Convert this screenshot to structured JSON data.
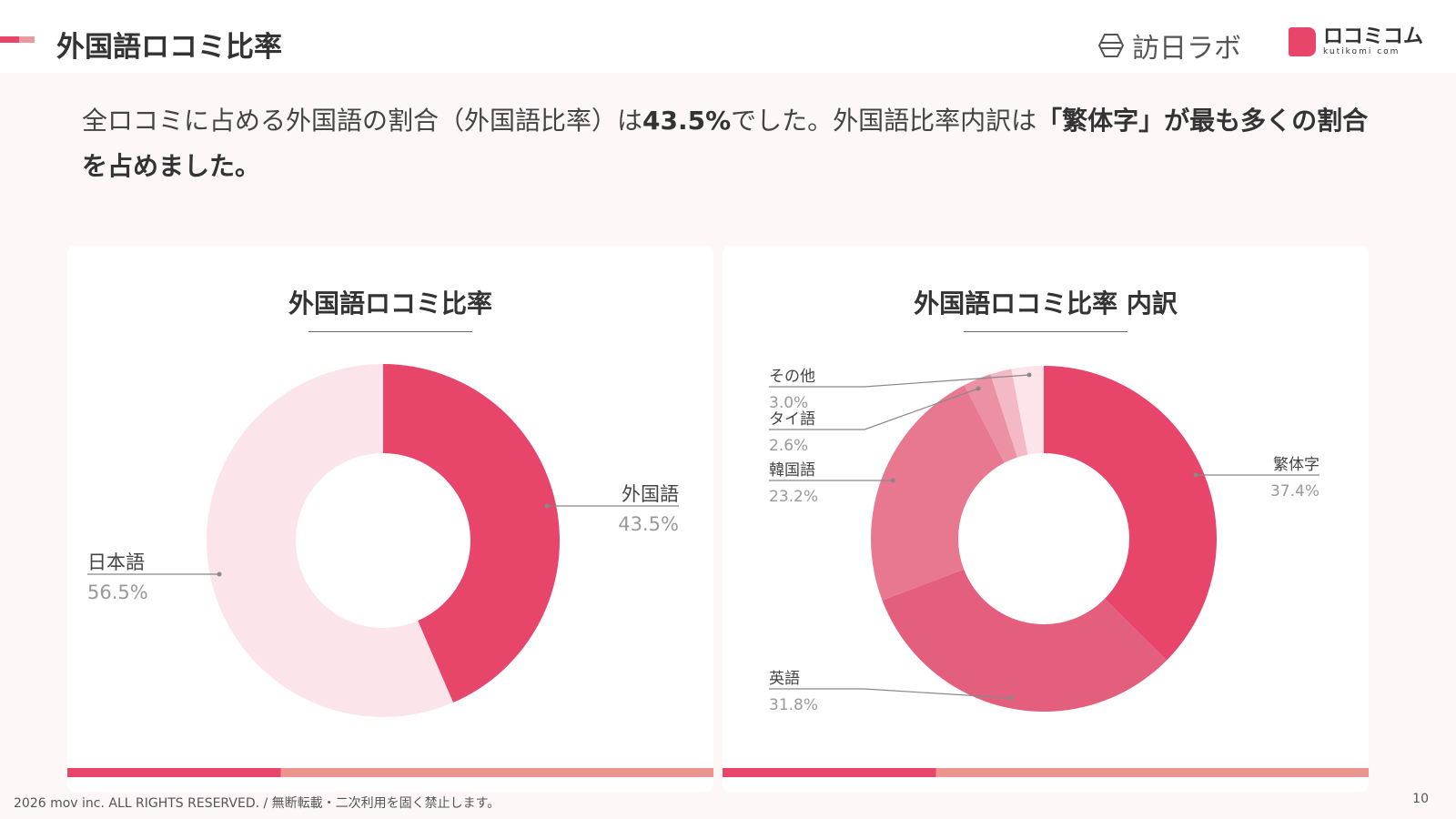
{
  "header": {
    "title": "外国語ロコミ比率",
    "logo1": "訪日ラボ",
    "logo2_main": "ロコミコム",
    "logo2_sub": "kutikomi com"
  },
  "summary": {
    "part1": "全ロコミに占める外国語の割合（外国語比率）は",
    "pct": "43.5%",
    "part2": "でした。外国語比率内訳は",
    "highlight": "「繁体字」が最も多くの割合を占めました。"
  },
  "chart_data": [
    {
      "type": "pie",
      "title": "外国語ロコミ比率",
      "donut": true,
      "slices": [
        {
          "label": "外国語",
          "value": 43.5,
          "display": "43.5%",
          "color": "#e8456b"
        },
        {
          "label": "日本語",
          "value": 56.5,
          "display": "56.5%",
          "color": "#fbe5ea"
        }
      ]
    },
    {
      "type": "pie",
      "title": "外国語ロコミ比率 内訳",
      "donut": true,
      "slices": [
        {
          "label": "繁体字",
          "value": 37.4,
          "display": "37.4%",
          "color": "#e8456b"
        },
        {
          "label": "英語",
          "value": 31.8,
          "display": "31.8%",
          "color": "#e45f7d"
        },
        {
          "label": "韓国語",
          "value": 23.2,
          "display": "23.2%",
          "color": "#e87890"
        },
        {
          "label": "タイ語",
          "value": 2.6,
          "display": "2.6%",
          "color": "#ec91a3"
        },
        {
          "label": "",
          "value": 2.0,
          "display": "",
          "color": "#f3b9c5"
        },
        {
          "label": "その他",
          "value": 3.0,
          "display": "3.0%",
          "color": "#fde4e8"
        }
      ]
    }
  ],
  "footer": {
    "copyright": "2026 mov inc. ALL RIGHTS RESERVED. / 無断転載・二次利用を固く禁止します。",
    "page": "10"
  }
}
